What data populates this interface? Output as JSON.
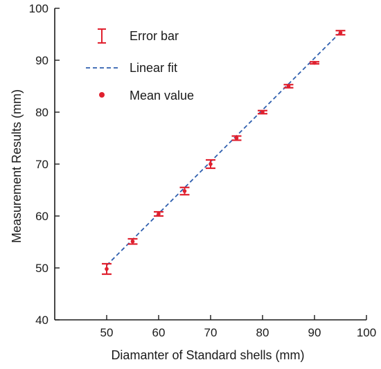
{
  "chart_data": {
    "type": "scatter",
    "xlabel": "Diamanter of Standard shells (mm)",
    "ylabel": "Measurement Results (mm)",
    "xlim": [
      40,
      100
    ],
    "ylim": [
      40,
      100
    ],
    "xticks": [
      50,
      60,
      70,
      80,
      90,
      100
    ],
    "yticks": [
      40,
      50,
      60,
      70,
      80,
      90,
      100
    ],
    "legend": {
      "position": "top-left",
      "entries": [
        {
          "label": "Error bar",
          "kind": "errorbar"
        },
        {
          "label": "Linear fit",
          "kind": "dashed-line"
        },
        {
          "label": "Mean value",
          "kind": "dot"
        }
      ]
    },
    "series": [
      {
        "name": "Mean value",
        "x": [
          50,
          55,
          60,
          65,
          70,
          75,
          80,
          85,
          90,
          95
        ],
        "y": [
          49.8,
          55.1,
          60.4,
          64.8,
          70.0,
          75.0,
          80.0,
          85.0,
          89.5,
          95.3
        ],
        "err": [
          1.0,
          0.5,
          0.4,
          0.7,
          0.8,
          0.4,
          0.3,
          0.3,
          0.2,
          0.4
        ]
      }
    ],
    "fit": {
      "name": "Linear fit",
      "x": [
        50,
        95
      ],
      "y": [
        50.5,
        95.4
      ]
    },
    "grid": false
  },
  "colors": {
    "series": "#e0202e",
    "fit": "#2f5fae",
    "axis": "#1a1a1a"
  }
}
